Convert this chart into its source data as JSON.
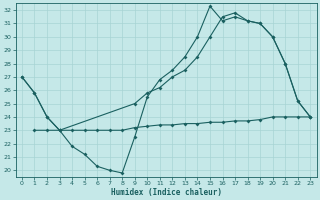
{
  "xlabel": "Humidex (Indice chaleur)",
  "bg_color": "#c5e8e8",
  "grid_color": "#a8d4d4",
  "line_color": "#1a6060",
  "xlim": [
    -0.5,
    23.5
  ],
  "ylim": [
    19.5,
    32.5
  ],
  "yticks": [
    20,
    21,
    22,
    23,
    24,
    25,
    26,
    27,
    28,
    29,
    30,
    31,
    32
  ],
  "xticks": [
    0,
    1,
    2,
    3,
    4,
    5,
    6,
    7,
    8,
    9,
    10,
    11,
    12,
    13,
    14,
    15,
    16,
    17,
    18,
    19,
    20,
    21,
    22,
    23
  ],
  "line1_x": [
    0,
    1,
    2,
    3,
    4,
    5,
    6,
    7,
    8,
    9,
    10,
    11,
    12,
    13,
    14,
    15,
    16,
    17,
    18,
    19,
    20,
    21,
    22,
    23
  ],
  "line1_y": [
    27.0,
    25.8,
    24.0,
    23.0,
    21.8,
    21.2,
    20.3,
    20.0,
    19.8,
    22.5,
    25.5,
    26.8,
    27.5,
    28.5,
    30.0,
    32.3,
    31.2,
    31.5,
    31.2,
    31.0,
    30.0,
    28.0,
    25.2,
    24.0
  ],
  "line2_x": [
    0,
    1,
    2,
    3,
    9,
    10,
    11,
    12,
    13,
    14,
    15,
    16,
    17,
    18,
    19,
    20,
    21,
    22,
    23
  ],
  "line2_y": [
    27.0,
    25.8,
    24.0,
    23.0,
    25.0,
    25.8,
    26.2,
    27.0,
    27.5,
    28.5,
    30.0,
    31.5,
    31.8,
    31.2,
    31.0,
    30.0,
    28.0,
    25.2,
    24.0
  ],
  "line3_x": [
    1,
    2,
    3,
    4,
    5,
    6,
    7,
    8,
    9,
    10,
    11,
    12,
    13,
    14,
    15,
    16,
    17,
    18,
    19,
    20,
    21,
    22,
    23
  ],
  "line3_y": [
    23.0,
    23.0,
    23.0,
    23.0,
    23.0,
    23.0,
    23.0,
    23.0,
    23.2,
    23.3,
    23.4,
    23.4,
    23.5,
    23.5,
    23.6,
    23.6,
    23.7,
    23.7,
    23.8,
    24.0,
    24.0,
    24.0,
    24.0
  ]
}
